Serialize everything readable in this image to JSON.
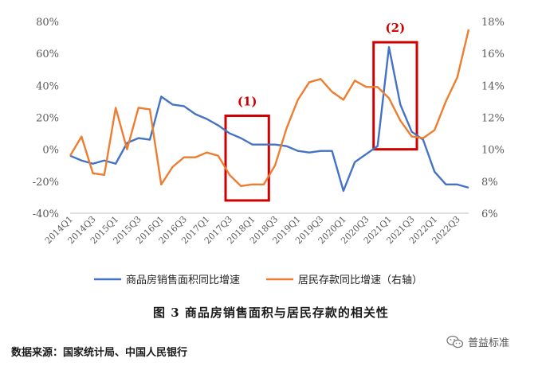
{
  "chart_data": {
    "type": "line",
    "categories": [
      "2014Q1",
      "2014Q2",
      "2014Q3",
      "2014Q4",
      "2015Q1",
      "2015Q2",
      "2015Q3",
      "2015Q4",
      "2016Q1",
      "2016Q2",
      "2016Q3",
      "2016Q4",
      "2017Q1",
      "2017Q2",
      "2017Q3",
      "2017Q4",
      "2018Q1",
      "2018Q2",
      "2018Q3",
      "2018Q4",
      "2019Q1",
      "2019Q2",
      "2019Q3",
      "2019Q4",
      "2020Q1",
      "2020Q2",
      "2020Q3",
      "2020Q4",
      "2021Q1",
      "2021Q2",
      "2021Q3",
      "2021Q4",
      "2022Q1",
      "2022Q2",
      "2022Q3",
      "2022Q4"
    ],
    "x_tick_labels": [
      "2014Q1",
      "2014Q3",
      "2015Q1",
      "2015Q3",
      "2016Q1",
      "2016Q3",
      "2017Q1",
      "2017Q3",
      "2018Q1",
      "2018Q3",
      "2019Q1",
      "2019Q3",
      "2020Q1",
      "2020Q3",
      "2021Q1",
      "2021Q3",
      "2022Q1",
      "2022Q3"
    ],
    "series": [
      {
        "name": "商品房销售面积同比增速",
        "axis": "left",
        "color": "#4472C4",
        "values": [
          -4,
          -7,
          -9,
          -7,
          -9,
          4,
          7,
          6,
          33,
          28,
          27,
          22,
          19,
          15,
          10,
          7,
          3,
          3,
          3,
          2,
          -1,
          -2,
          -1,
          -1,
          -26,
          -8,
          -3,
          2,
          64,
          28,
          11,
          6,
          -14,
          -22,
          -22,
          -24
        ]
      },
      {
        "name": "居民存款同比增速（右轴）",
        "axis": "right",
        "color": "#ED7D31",
        "values": [
          9.6,
          10.8,
          8.5,
          8.4,
          12.6,
          10.0,
          12.6,
          12.5,
          7.8,
          8.9,
          9.5,
          9.5,
          9.8,
          9.6,
          8.4,
          7.7,
          7.8,
          7.8,
          9.0,
          11.3,
          13.1,
          14.2,
          14.4,
          13.6,
          13.1,
          14.3,
          13.9,
          13.9,
          13.2,
          11.8,
          10.8,
          10.7,
          11.2,
          13.0,
          14.5,
          17.5
        ]
      }
    ],
    "y_left": {
      "min": -40,
      "max": 80,
      "step": 20,
      "tick_labels": [
        "-40%",
        "-20%",
        "0%",
        "20%",
        "40%",
        "60%",
        "80%"
      ]
    },
    "y_right": {
      "min": 6,
      "max": 18,
      "step": 2,
      "tick_labels": [
        "6%",
        "8%",
        "10%",
        "12%",
        "14%",
        "16%",
        "18%"
      ]
    },
    "grid": false,
    "legend_position": "bottom",
    "annotations": [
      {
        "label": "(1)",
        "color": "#D00000",
        "from_category": "2017Q3",
        "to_category": "2018Q2",
        "y_left_low": -32,
        "y_left_high": 21
      },
      {
        "label": "(2)",
        "color": "#D00000",
        "from_category": "2020Q4",
        "to_category": "2021Q3",
        "y_left_low": 0,
        "y_left_high": 67
      }
    ]
  },
  "caption": "图 3   商品房销售面积与居民存款的相关性",
  "source": "数据来源：国家统计局、中国人民银行",
  "watermark": "普益标准"
}
